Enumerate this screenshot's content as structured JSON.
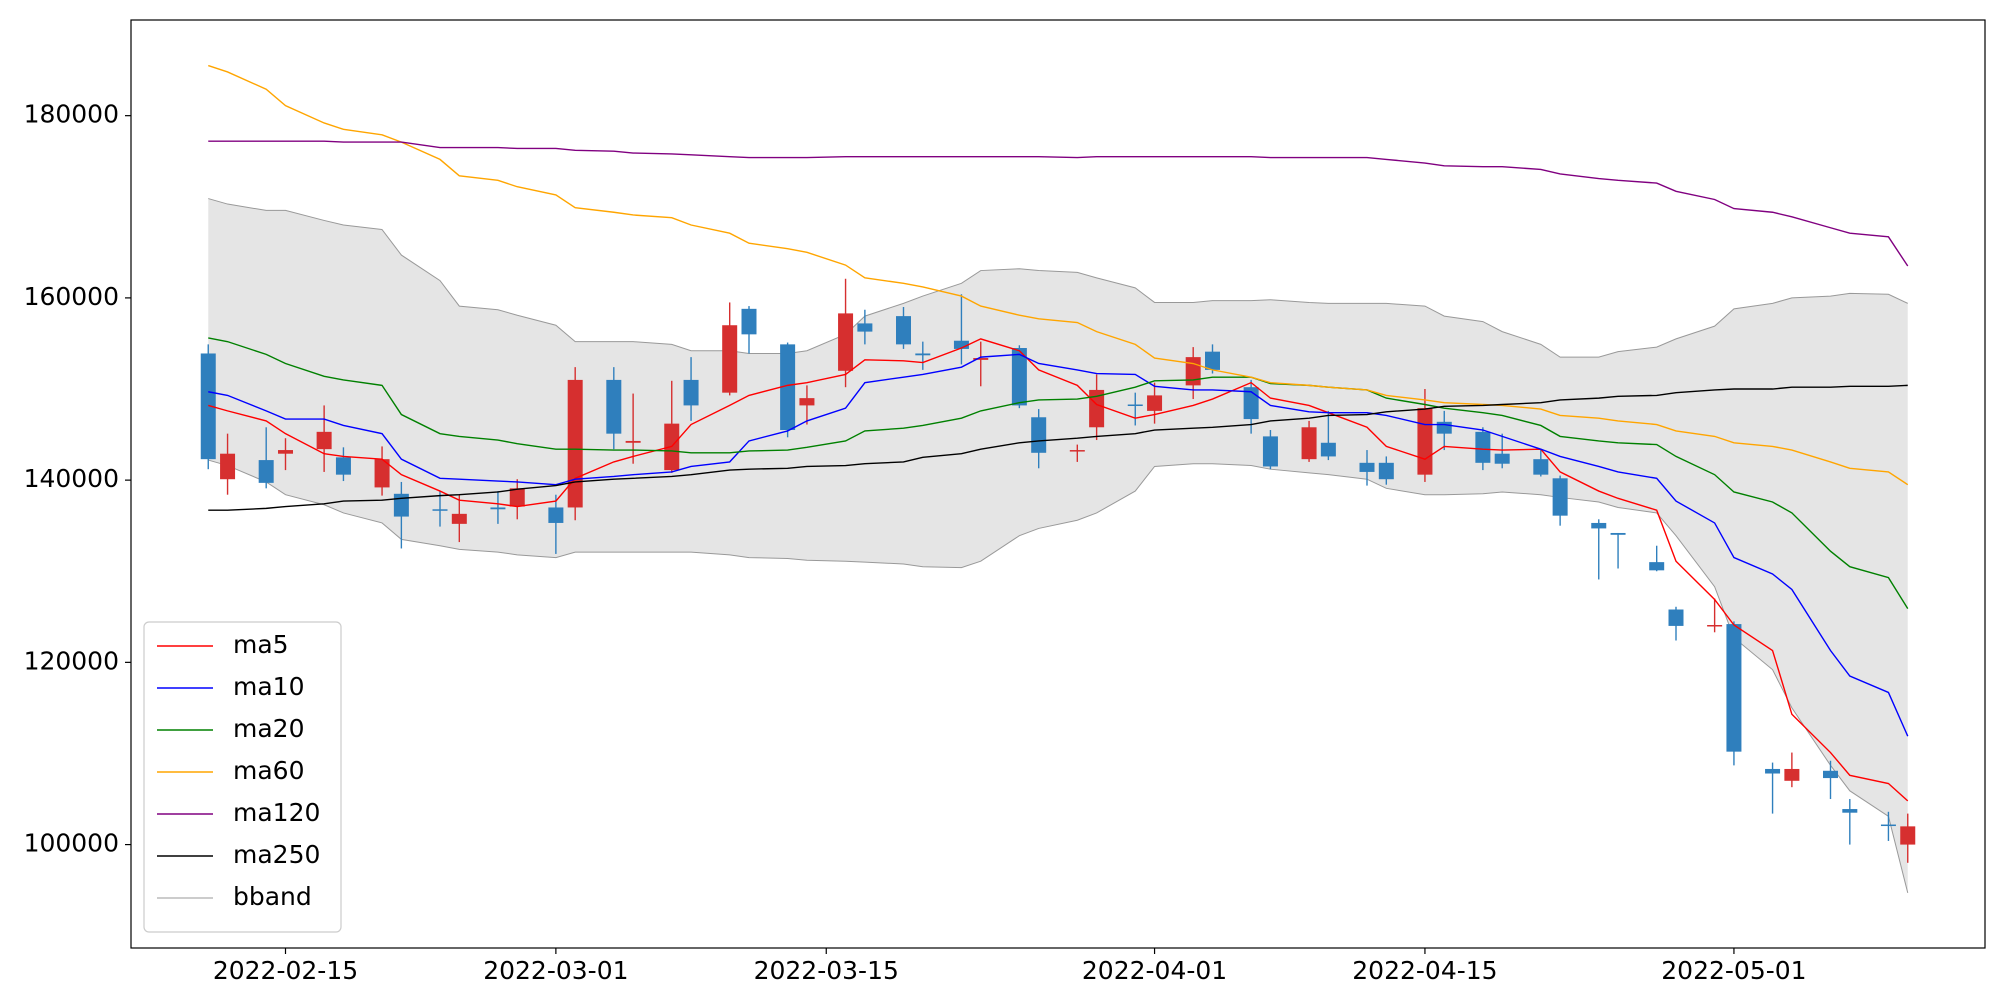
{
  "chart_data": {
    "type": "candlestick",
    "x": [
      "2022-02-11",
      "2022-02-12",
      "2022-02-14",
      "2022-02-15",
      "2022-02-17",
      "2022-02-18",
      "2022-02-20",
      "2022-02-21",
      "2022-02-23",
      "2022-02-24",
      "2022-02-26",
      "2022-02-27",
      "2022-03-01",
      "2022-03-02",
      "2022-03-04",
      "2022-03-05",
      "2022-03-07",
      "2022-03-08",
      "2022-03-10",
      "2022-03-11",
      "2022-03-13",
      "2022-03-14",
      "2022-03-16",
      "2022-03-17",
      "2022-03-19",
      "2022-03-20",
      "2022-03-22",
      "2022-03-23",
      "2022-03-25",
      "2022-03-26",
      "2022-03-28",
      "2022-03-29",
      "2022-03-31",
      "2022-04-01",
      "2022-04-03",
      "2022-04-04",
      "2022-04-06",
      "2022-04-07",
      "2022-04-09",
      "2022-04-10",
      "2022-04-12",
      "2022-04-13",
      "2022-04-15",
      "2022-04-16",
      "2022-04-18",
      "2022-04-19",
      "2022-04-21",
      "2022-04-22",
      "2022-04-24",
      "2022-04-25",
      "2022-04-27",
      "2022-04-28",
      "2022-04-30",
      "2022-05-01",
      "2022-05-03",
      "2022-05-04",
      "2022-05-06",
      "2022-05-07",
      "2022-05-09",
      "2022-05-10"
    ],
    "open": [
      153900,
      140100,
      142200,
      142900,
      143400,
      142500,
      139200,
      138500,
      136800,
      135200,
      137000,
      137100,
      137000,
      137000,
      151000,
      144100,
      141100,
      151000,
      149600,
      158800,
      154900,
      148200,
      152000,
      157200,
      158000,
      153900,
      155300,
      153200,
      154500,
      146900,
      143200,
      145800,
      148300,
      147600,
      150400,
      154100,
      150200,
      144800,
      142300,
      144100,
      141900,
      141900,
      140600,
      146400,
      145300,
      142900,
      142300,
      140200,
      135300,
      134200,
      131000,
      125800,
      124000,
      124200,
      108300,
      107000,
      108100,
      103900,
      102200,
      100000
    ],
    "high": [
      154900,
      145100,
      145800,
      144600,
      148200,
      143600,
      143700,
      139800,
      138800,
      138400,
      138800,
      140100,
      138400,
      152400,
      152400,
      149500,
      150900,
      153500,
      159500,
      159100,
      155100,
      150400,
      162100,
      158700,
      159000,
      155200,
      160400,
      155200,
      154800,
      147800,
      143900,
      151600,
      149600,
      150700,
      154600,
      154900,
      151000,
      145500,
      146500,
      147600,
      143300,
      142600,
      150000,
      147600,
      145800,
      145100,
      143400,
      140500,
      135700,
      134200,
      132800,
      126100,
      127000,
      124500,
      109000,
      110100,
      109200,
      105000,
      103600,
      103400
    ],
    "low": [
      141200,
      138400,
      139100,
      141100,
      140900,
      139900,
      138300,
      132500,
      134900,
      133200,
      135200,
      135700,
      131900,
      135600,
      143400,
      141800,
      140800,
      146500,
      149300,
      153900,
      144700,
      146100,
      150200,
      154900,
      154400,
      152100,
      152700,
      150300,
      147900,
      141300,
      142000,
      144400,
      146000,
      146200,
      148900,
      151700,
      145100,
      141200,
      142000,
      142200,
      139400,
      139500,
      139800,
      143300,
      141100,
      141300,
      140400,
      135000,
      129100,
      130300,
      130000,
      122400,
      123300,
      108700,
      103400,
      106300,
      105000,
      100000,
      100400,
      98000
    ],
    "close": [
      142300,
      142900,
      139700,
      143300,
      145300,
      140600,
      142300,
      136000,
      136700,
      136300,
      136800,
      139100,
      135300,
      151000,
      145100,
      144300,
      146200,
      148200,
      157000,
      156000,
      145500,
      149000,
      158300,
      156300,
      154900,
      153700,
      154400,
      153400,
      148200,
      143000,
      143300,
      149900,
      148200,
      149300,
      153500,
      152100,
      146700,
      141500,
      145800,
      142600,
      140900,
      140100,
      147900,
      145100,
      141900,
      141800,
      140600,
      136100,
      134700,
      134000,
      130100,
      124000,
      124100,
      110200,
      107800,
      108300,
      107300,
      103500,
      102100,
      102000
    ],
    "up_color": "#d62f2f",
    "down_color": "#2f7fbd",
    "series": [
      {
        "name": "ma5",
        "color": "#ff0000",
        "values": [
          148200,
          147600,
          146500,
          145100,
          142900,
          142600,
          142300,
          140600,
          138800,
          137800,
          137400,
          137100,
          137700,
          140200,
          142000,
          142600,
          143700,
          146100,
          148200,
          149300,
          150400,
          150700,
          151600,
          153200,
          153100,
          152900,
          154500,
          155500,
          154200,
          152100,
          150400,
          148300,
          146800,
          147200,
          148200,
          148900,
          150700,
          149000,
          148200,
          147400,
          145800,
          143700,
          142300,
          143700,
          143400,
          143300,
          143400,
          140900,
          138800,
          138000,
          136700,
          131100,
          126900,
          124100,
          121300,
          114300,
          110100,
          107600,
          106700,
          104800
        ]
      },
      {
        "name": "ma10",
        "color": "#0000ff",
        "values": [
          149700,
          149300,
          147600,
          146700,
          146700,
          146000,
          145100,
          142300,
          140200,
          140100,
          139900,
          139800,
          139500,
          140100,
          140400,
          140600,
          140900,
          141500,
          142000,
          144300,
          145400,
          146500,
          147900,
          150700,
          151300,
          151600,
          152400,
          153500,
          153800,
          152800,
          152100,
          151700,
          151600,
          150300,
          149900,
          149900,
          149700,
          148200,
          147500,
          147400,
          147400,
          147100,
          146100,
          146100,
          145500,
          144800,
          143400,
          142600,
          141500,
          140900,
          140200,
          137700,
          135300,
          131500,
          129700,
          128000,
          121300,
          118500,
          116700,
          111900
        ]
      },
      {
        "name": "ma20",
        "color": "#008000",
        "values": [
          155600,
          155200,
          153800,
          152800,
          151400,
          151000,
          150400,
          147200,
          145100,
          144800,
          144400,
          144000,
          143400,
          143400,
          143300,
          143300,
          143200,
          143000,
          143000,
          143200,
          143300,
          143600,
          144300,
          145400,
          145700,
          146000,
          146800,
          147600,
          148500,
          148800,
          148900,
          149200,
          150200,
          150900,
          151000,
          151300,
          151300,
          150600,
          150400,
          150200,
          149900,
          149000,
          148300,
          147900,
          147400,
          147100,
          146000,
          144800,
          144300,
          144100,
          143900,
          142600,
          140600,
          138700,
          137600,
          136400,
          132200,
          130500,
          129300,
          125900
        ]
      },
      {
        "name": "ma60",
        "color": "#ffa500",
        "values": [
          185500,
          184800,
          182900,
          181100,
          179200,
          178500,
          177900,
          177100,
          175200,
          173400,
          172900,
          172200,
          171300,
          169900,
          169400,
          169100,
          168800,
          168000,
          167100,
          166000,
          165400,
          165000,
          163600,
          162200,
          161600,
          161200,
          160200,
          159100,
          158100,
          157700,
          157300,
          156300,
          154900,
          153400,
          152800,
          152100,
          151300,
          150700,
          150400,
          150200,
          149900,
          149300,
          148800,
          148500,
          148300,
          148200,
          147800,
          147100,
          146800,
          146500,
          146100,
          145400,
          144800,
          144100,
          143700,
          143300,
          142000,
          141300,
          140900,
          139500
        ]
      },
      {
        "name": "ma120",
        "color": "#800080",
        "values": [
          177200,
          177200,
          177200,
          177200,
          177200,
          177100,
          177100,
          177100,
          176500,
          176500,
          176500,
          176400,
          176400,
          176200,
          176100,
          175900,
          175800,
          175700,
          175500,
          175400,
          175400,
          175400,
          175500,
          175500,
          175500,
          175500,
          175500,
          175500,
          175500,
          175500,
          175400,
          175500,
          175500,
          175500,
          175500,
          175500,
          175500,
          175400,
          175400,
          175400,
          175400,
          175200,
          174800,
          174500,
          174400,
          174400,
          174100,
          173600,
          173100,
          172900,
          172600,
          171700,
          170800,
          169800,
          169400,
          168900,
          167700,
          167100,
          166700,
          163500
        ]
      },
      {
        "name": "ma250",
        "color": "#000000",
        "values": [
          136700,
          136700,
          136900,
          137100,
          137400,
          137700,
          137800,
          138000,
          138300,
          138400,
          138700,
          139000,
          139400,
          139800,
          140100,
          140200,
          140400,
          140600,
          141100,
          141200,
          141300,
          141500,
          141600,
          141800,
          142000,
          142500,
          142900,
          143400,
          144100,
          144300,
          144600,
          144800,
          145100,
          145500,
          145700,
          145800,
          146100,
          146500,
          146800,
          147100,
          147200,
          147500,
          147800,
          148100,
          148200,
          148300,
          148500,
          148800,
          149000,
          149200,
          149300,
          149600,
          149900,
          150000,
          150000,
          150200,
          150200,
          150300,
          150300,
          150400
        ]
      },
      {
        "name": "bband",
        "color": "#999999",
        "fill": "#e5e5e5",
        "upper": [
          170900,
          170300,
          169600,
          169600,
          168500,
          168000,
          167500,
          164700,
          161900,
          159100,
          158700,
          158100,
          157000,
          155200,
          155200,
          155200,
          154900,
          154200,
          154200,
          153900,
          153900,
          154200,
          156000,
          158000,
          159400,
          160200,
          161600,
          163000,
          163200,
          163000,
          162800,
          162200,
          161100,
          159500,
          159500,
          159700,
          159700,
          159800,
          159500,
          159400,
          159400,
          159400,
          159100,
          158000,
          157400,
          156300,
          154900,
          153500,
          153500,
          154100,
          154600,
          155500,
          156900,
          158800,
          159400,
          160000,
          160200,
          160500,
          160400,
          159400
        ],
        "lower": [
          142200,
          141600,
          139800,
          138400,
          137300,
          136400,
          135300,
          133500,
          132800,
          132400,
          132100,
          131800,
          131500,
          132100,
          132100,
          132100,
          132100,
          132100,
          131800,
          131500,
          131400,
          131200,
          131100,
          131000,
          130800,
          130500,
          130400,
          131100,
          133900,
          134700,
          135600,
          136400,
          138800,
          141500,
          141800,
          141800,
          141600,
          141200,
          140800,
          140600,
          140100,
          139100,
          138400,
          138400,
          138500,
          138700,
          138400,
          138100,
          137600,
          137000,
          136400,
          133900,
          128300,
          122700,
          119200,
          115000,
          108700,
          105900,
          103100,
          94700
        ]
      }
    ],
    "xlim": [
      "2022-02-07",
      "2022-05-14"
    ],
    "xticks": [
      "2022-02-15",
      "2022-03-01",
      "2022-03-15",
      "2022-04-01",
      "2022-04-15",
      "2022-05-01"
    ],
    "ylim": [
      88650,
      190500
    ],
    "yticks": [
      100000,
      120000,
      140000,
      160000,
      180000
    ],
    "legend": "lower left"
  }
}
